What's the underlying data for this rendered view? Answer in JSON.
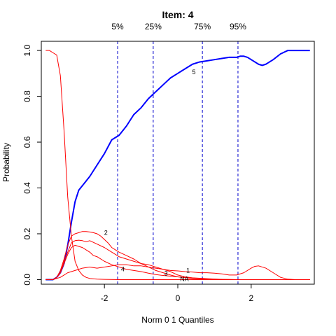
{
  "chart_data": {
    "type": "line",
    "title": "Item:  4",
    "xlabel": "Norm 0 1 Quantiles",
    "ylabel": "Probability",
    "xlim": [
      -3.72,
      3.72
    ],
    "ylim": [
      -0.02,
      1.04
    ],
    "x_ticks": [
      -2,
      0,
      2
    ],
    "y_ticks": [
      0.0,
      0.2,
      0.4,
      0.6,
      0.8,
      1.0
    ],
    "grid": false,
    "legend": "none",
    "quantile_lines": [
      {
        "label": "5%",
        "x": -1.64
      },
      {
        "label": "25%",
        "x": -0.67
      },
      {
        "label": "75%",
        "x": 0.67
      },
      {
        "label": "95%",
        "x": 1.64
      }
    ],
    "colors": {
      "correct": "#0000ff",
      "distractor": "#ff0000",
      "quantile": "#0000cc",
      "axis": "#000000"
    },
    "series": [
      {
        "name": "5",
        "color": "#0000ff",
        "emphasis": true,
        "label": {
          "text": "5",
          "x": 0.44,
          "y": 0.905
        },
        "x": [
          -3.6,
          -3.4,
          -3.3,
          -3.2,
          -3.1,
          -3.0,
          -2.9,
          -2.8,
          -2.7,
          -2.6,
          -2.4,
          -2.2,
          -2.0,
          -1.8,
          -1.6,
          -1.4,
          -1.2,
          -1.0,
          -0.8,
          -0.6,
          -0.4,
          -0.2,
          0.0,
          0.2,
          0.4,
          0.6,
          0.8,
          1.0,
          1.2,
          1.4,
          1.6,
          1.7,
          1.8,
          1.9,
          2.0,
          2.2,
          2.3,
          2.4,
          2.6,
          2.8,
          3.0,
          3.2,
          3.4,
          3.6
        ],
        "y": [
          0.0,
          0.0,
          0.01,
          0.03,
          0.07,
          0.15,
          0.25,
          0.34,
          0.39,
          0.41,
          0.45,
          0.5,
          0.55,
          0.61,
          0.63,
          0.67,
          0.72,
          0.75,
          0.79,
          0.82,
          0.85,
          0.88,
          0.9,
          0.92,
          0.94,
          0.95,
          0.955,
          0.96,
          0.965,
          0.97,
          0.97,
          0.975,
          0.975,
          0.97,
          0.96,
          0.94,
          0.935,
          0.94,
          0.96,
          0.985,
          1.0,
          1.0,
          1.0,
          1.0
        ]
      },
      {
        "name": "1",
        "color": "#ff0000",
        "label": {
          "text": "1",
          "x": 0.28,
          "y": 0.04
        },
        "x": [
          -3.6,
          -3.4,
          -3.3,
          -3.2,
          -3.1,
          -3.0,
          -2.9,
          -2.8,
          -2.7,
          -2.6,
          -2.4,
          -2.2,
          -2.0,
          -1.8,
          -1.6,
          -1.4,
          -1.2,
          -1.0,
          -0.8,
          -0.6,
          -0.4,
          -0.2,
          0.0,
          0.2,
          0.4,
          0.6,
          0.8,
          1.0,
          1.2,
          1.4,
          1.6,
          1.8,
          2.0,
          2.1,
          2.2,
          2.3,
          2.4,
          2.6,
          2.8,
          3.0,
          3.2,
          3.6
        ],
        "y": [
          0.0,
          0.0,
          0.005,
          0.01,
          0.02,
          0.03,
          0.035,
          0.04,
          0.045,
          0.05,
          0.055,
          0.05,
          0.055,
          0.06,
          0.065,
          0.065,
          0.06,
          0.06,
          0.055,
          0.05,
          0.045,
          0.04,
          0.038,
          0.035,
          0.033,
          0.03,
          0.03,
          0.028,
          0.025,
          0.02,
          0.02,
          0.03,
          0.05,
          0.058,
          0.06,
          0.055,
          0.05,
          0.03,
          0.01,
          0.002,
          0.0,
          0.0
        ]
      },
      {
        "name": "2",
        "color": "#ff0000",
        "label": {
          "text": "2",
          "x": -1.96,
          "y": 0.205
        },
        "x": [
          -3.6,
          -3.4,
          -3.3,
          -3.2,
          -3.1,
          -3.0,
          -2.9,
          -2.8,
          -2.7,
          -2.6,
          -2.5,
          -2.4,
          -2.3,
          -2.2,
          -2.1,
          -2.0,
          -1.9,
          -1.8,
          -1.7,
          -1.6,
          -1.4,
          -1.2,
          -1.0,
          -0.8,
          -0.6,
          -0.4,
          -0.2,
          0.0,
          0.4,
          0.8,
          1.2,
          1.6,
          2.0,
          2.4,
          2.8,
          3.2,
          3.6
        ],
        "y": [
          0.0,
          0.0,
          0.01,
          0.04,
          0.09,
          0.15,
          0.19,
          0.2,
          0.205,
          0.21,
          0.21,
          0.208,
          0.205,
          0.2,
          0.19,
          0.175,
          0.16,
          0.14,
          0.13,
          0.12,
          0.105,
          0.09,
          0.07,
          0.055,
          0.04,
          0.03,
          0.02,
          0.012,
          0.005,
          0.002,
          0.0,
          0.0,
          0.0,
          0.0,
          0.0,
          0.0,
          0.0
        ]
      },
      {
        "name": "3",
        "color": "#ff0000",
        "label": {
          "text": "3",
          "x": -0.32,
          "y": 0.028
        },
        "x": [
          -3.6,
          -3.4,
          -3.3,
          -3.2,
          -3.1,
          -3.0,
          -2.9,
          -2.8,
          -2.7,
          -2.6,
          -2.5,
          -2.4,
          -2.3,
          -2.2,
          -2.0,
          -1.8,
          -1.6,
          -1.4,
          -1.2,
          -1.0,
          -0.8,
          -0.6,
          -0.4,
          -0.2,
          0.0,
          0.2,
          0.4,
          0.8,
          1.2,
          1.6,
          2.0,
          2.4,
          2.8,
          3.2,
          3.6
        ],
        "y": [
          0.0,
          0.0,
          0.01,
          0.03,
          0.07,
          0.11,
          0.14,
          0.15,
          0.145,
          0.14,
          0.13,
          0.12,
          0.105,
          0.1,
          0.08,
          0.065,
          0.055,
          0.045,
          0.04,
          0.035,
          0.028,
          0.022,
          0.018,
          0.015,
          0.012,
          0.009,
          0.006,
          0.003,
          0.001,
          0.0,
          0.0,
          0.0,
          0.0,
          0.0,
          0.0
        ]
      },
      {
        "name": "4",
        "color": "#ff0000",
        "label": {
          "text": "4",
          "x": -1.5,
          "y": 0.045
        },
        "x": [
          -3.6,
          -3.4,
          -3.3,
          -3.2,
          -3.1,
          -3.0,
          -2.9,
          -2.8,
          -2.7,
          -2.6,
          -2.5,
          -2.4,
          -2.2,
          -2.0,
          -1.8,
          -1.6,
          -1.4,
          -1.2,
          -1.0,
          -0.8,
          -0.6,
          -0.4,
          -0.2,
          0.0,
          0.2,
          0.4,
          0.8,
          1.2,
          1.6,
          2.0,
          2.4,
          2.8,
          3.2,
          3.6
        ],
        "y": [
          0.0,
          0.0,
          0.01,
          0.03,
          0.08,
          0.12,
          0.16,
          0.17,
          0.172,
          0.17,
          0.165,
          0.17,
          0.155,
          0.14,
          0.12,
          0.1,
          0.09,
          0.08,
          0.07,
          0.065,
          0.055,
          0.045,
          0.035,
          0.02,
          0.012,
          0.008,
          0.004,
          0.001,
          0.0,
          0.0,
          0.0,
          0.0,
          0.0,
          0.0
        ]
      },
      {
        "name": "NA",
        "color": "#ff0000",
        "label": {
          "text": "NA",
          "x": 0.18,
          "y": 0.003
        },
        "x": [
          -3.6,
          -3.5,
          -3.4,
          -3.3,
          -3.2,
          -3.1,
          -3.0,
          -2.9,
          -2.8,
          -2.7,
          -2.6,
          -2.5,
          -2.4,
          -2.2,
          -2.0,
          -1.6,
          -1.2,
          -0.8,
          -0.4,
          0.0,
          0.4,
          0.8,
          1.2,
          1.6,
          2.0,
          2.4,
          2.8,
          3.2,
          3.6
        ],
        "y": [
          1.0,
          1.0,
          0.99,
          0.98,
          0.89,
          0.65,
          0.36,
          0.19,
          0.08,
          0.04,
          0.02,
          0.01,
          0.005,
          0.002,
          0.001,
          0.0,
          0.0,
          0.0,
          0.0,
          0.0,
          0.0,
          0.0,
          0.0,
          0.0,
          0.0,
          0.0,
          0.0,
          0.0,
          0.0
        ]
      }
    ]
  }
}
